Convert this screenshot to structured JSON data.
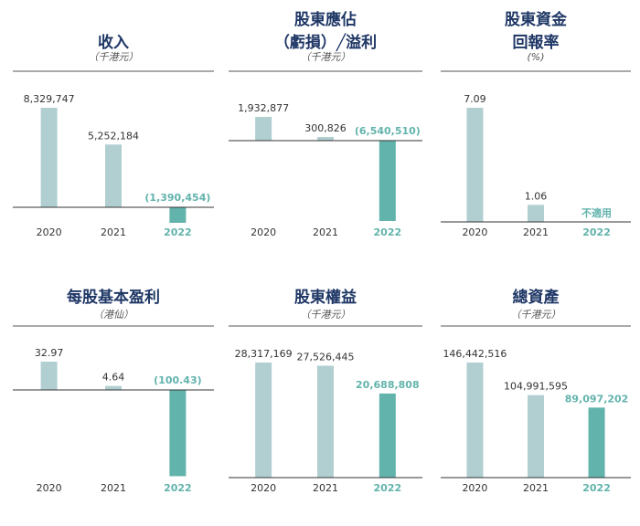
{
  "palette": {
    "light": "#b1cfd1",
    "dark": "#62b3ac",
    "title": "#1f3766",
    "axis": "#555555",
    "text": "#333333",
    "highlight": "#62b3ac"
  },
  "chart_data": [
    {
      "type": "bar",
      "title_lines": [
        "收入"
      ],
      "unit": "（千港元）",
      "categories": [
        "2020",
        "2021",
        "2022"
      ],
      "values": [
        8329747,
        5252184,
        -1390454
      ],
      "labels": [
        "8,329,747",
        "5,252,184",
        "(1,390,454)"
      ]
    },
    {
      "type": "bar",
      "title_lines": [
        "股東應佔",
        "（虧損）╱溢利"
      ],
      "unit": "（千港元）",
      "categories": [
        "2020",
        "2021",
        "2022"
      ],
      "values": [
        1932877,
        300826,
        -6540510
      ],
      "labels": [
        "1,932,877",
        "300,826",
        "(6,540,510)"
      ]
    },
    {
      "type": "bar",
      "title_lines": [
        "股東資金",
        "回報率"
      ],
      "unit": "(%)",
      "categories": [
        "2020",
        "2021",
        "2022"
      ],
      "values": [
        7.09,
        1.06,
        null
      ],
      "labels": [
        "7.09",
        "1.06",
        "不適用"
      ]
    },
    {
      "type": "bar",
      "title_lines": [
        "每股基本盈利"
      ],
      "unit": "（港仙）",
      "categories": [
        "2020",
        "2021",
        "2022"
      ],
      "values": [
        32.97,
        4.64,
        -100.43
      ],
      "labels": [
        "32.97",
        "4.64",
        "(100.43)"
      ]
    },
    {
      "type": "bar",
      "title_lines": [
        "股東權益"
      ],
      "unit": "（千港元）",
      "categories": [
        "2020",
        "2021",
        "2022"
      ],
      "values": [
        28317169,
        27526445,
        20688808
      ],
      "labels": [
        "28,317,169",
        "27,526,445",
        "20,688,808"
      ]
    },
    {
      "type": "bar",
      "title_lines": [
        "總資產"
      ],
      "unit": "（千港元）",
      "categories": [
        "2020",
        "2021",
        "2022"
      ],
      "values": [
        146442516,
        104991595,
        89097202
      ],
      "labels": [
        "146,442,516",
        "104,991,595",
        "89,097,202"
      ]
    }
  ]
}
